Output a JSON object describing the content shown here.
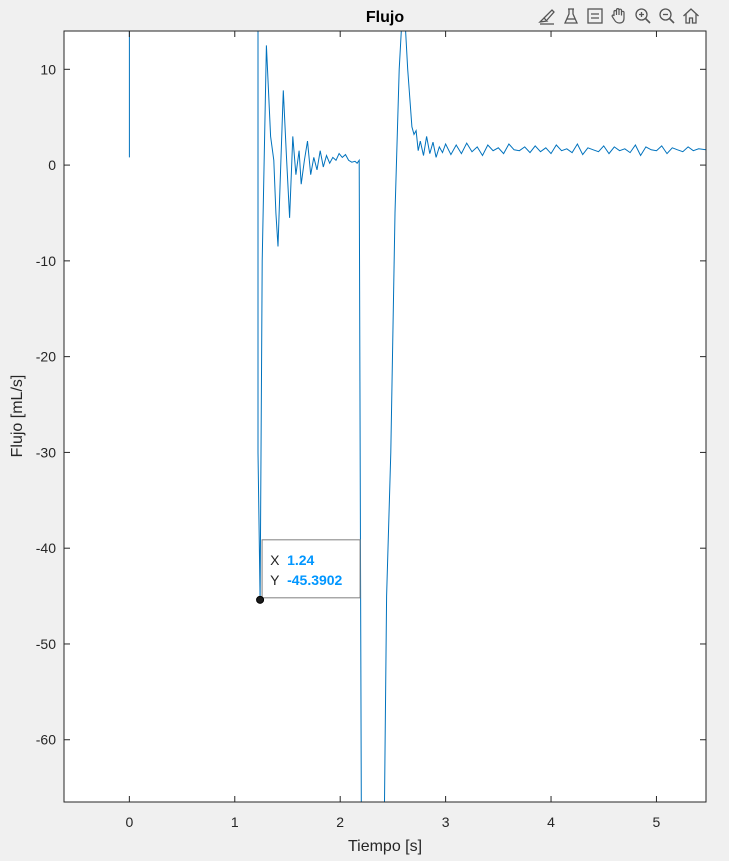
{
  "toolbar": {
    "icons": [
      "brush-icon",
      "data-tip-icon",
      "legend-icon",
      "pan-hand-icon",
      "zoom-in-icon",
      "zoom-out-icon",
      "home-icon"
    ]
  },
  "colors": {
    "line": "#0072BD",
    "datatip_value": "#0096FF",
    "axes_bg": "#ffffff",
    "figure_bg": "#f0f0f0"
  },
  "datatip": {
    "x_label": "X",
    "x_value": "1.24",
    "y_label": "Y",
    "y_value": "-45.3902",
    "x": 1.24,
    "y": -45.3902
  },
  "chart_data": {
    "type": "line",
    "title": "Flujo",
    "xlabel": "Tiempo [s]",
    "ylabel": "Flujo [mL/s]",
    "xlim": [
      -0.62,
      5.47
    ],
    "ylim": [
      -66.5,
      14
    ],
    "grid": false,
    "xticks": [
      0,
      1,
      2,
      3,
      4,
      5
    ],
    "yticks": [
      10,
      0,
      -10,
      -20,
      -30,
      -40,
      -50,
      -60
    ],
    "series": [
      {
        "x": [
          0.0,
          0.0,
          0.0,
          0.0,
          1.22,
          1.22,
          1.24,
          1.26,
          1.3,
          1.34,
          1.37,
          1.39,
          1.41,
          1.43,
          1.46,
          1.49,
          1.52,
          1.55,
          1.58,
          1.61,
          1.63,
          1.66,
          1.69,
          1.72,
          1.75,
          1.78,
          1.81,
          1.84,
          1.87,
          1.9,
          1.93,
          1.96,
          1.99,
          2.02,
          2.05,
          2.08,
          2.11,
          2.14,
          2.16,
          2.18,
          2.2,
          2.22,
          2.42,
          2.44,
          2.48,
          2.52,
          2.56,
          2.58,
          2.6,
          2.62,
          2.64,
          2.66,
          2.68,
          2.7,
          2.72,
          2.74,
          2.76,
          2.79,
          2.82,
          2.85,
          2.88,
          2.91,
          2.94,
          2.97,
          3.0,
          3.05,
          3.1,
          3.15,
          3.2,
          3.25,
          3.3,
          3.35,
          3.4,
          3.45,
          3.5,
          3.55,
          3.6,
          3.65,
          3.7,
          3.75,
          3.8,
          3.85,
          3.9,
          3.95,
          4.0,
          4.05,
          4.1,
          4.15,
          4.2,
          4.25,
          4.3,
          4.35,
          4.4,
          4.45,
          4.5,
          4.55,
          4.6,
          4.65,
          4.7,
          4.75,
          4.8,
          4.85,
          4.9,
          4.95,
          5.0,
          5.05,
          5.1,
          5.15,
          5.2,
          5.25,
          5.3,
          5.35,
          5.4,
          5.47
        ],
        "y": [
          0.8,
          8.0,
          14.0,
          null,
          14.0,
          -30.0,
          -45.39,
          -10.0,
          12.5,
          3.0,
          0.5,
          -5.0,
          -8.5,
          -2.0,
          7.8,
          1.0,
          -5.5,
          3.0,
          -1.0,
          1.5,
          -2.0,
          0.5,
          2.5,
          -1.0,
          0.8,
          -0.5,
          1.5,
          -0.2,
          1.0,
          0.2,
          0.8,
          0.5,
          1.2,
          0.8,
          1.1,
          0.5,
          0.3,
          0.4,
          0.2,
          0.5,
          -66.5,
          -66.5,
          -66.5,
          -45.0,
          -30.0,
          -5.0,
          10.0,
          14.0,
          14.0,
          14.0,
          10.0,
          7.0,
          4.0,
          3.2,
          3.6,
          1.5,
          2.5,
          1.0,
          3.0,
          1.2,
          2.4,
          0.8,
          1.9,
          1.3,
          2.2,
          1.1,
          2.1,
          1.2,
          2.3,
          1.4,
          1.9,
          1.0,
          2.1,
          1.5,
          1.8,
          1.2,
          2.2,
          1.6,
          1.5,
          1.9,
          1.3,
          2.0,
          1.4,
          1.8,
          1.2,
          2.1,
          1.5,
          1.7,
          1.3,
          2.2,
          1.1,
          1.8,
          1.6,
          1.4,
          2.0,
          1.2,
          1.9,
          1.5,
          1.7,
          1.3,
          2.1,
          1.0,
          1.9,
          1.6,
          1.5,
          2.0,
          1.2,
          1.8,
          1.6,
          1.4,
          1.9,
          1.5,
          1.7,
          1.6
        ]
      }
    ]
  }
}
